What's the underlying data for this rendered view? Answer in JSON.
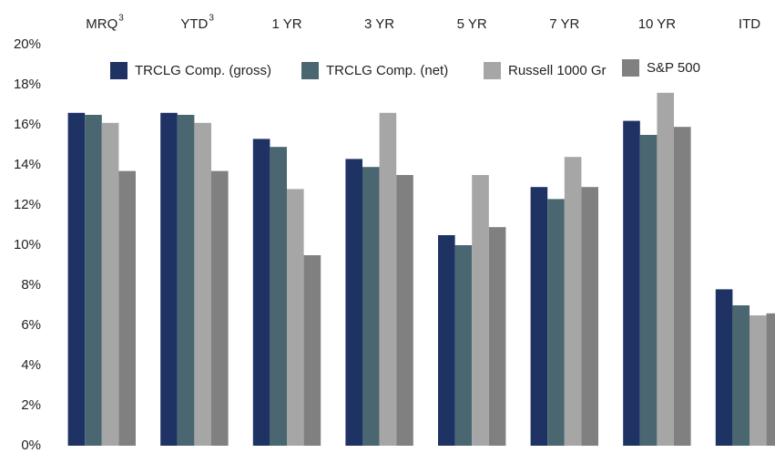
{
  "chart_data": {
    "type": "bar",
    "categories": [
      "MRQ",
      "YTD",
      "1 YR",
      "3 YR",
      "5 YR",
      "7 YR",
      "10 YR",
      "ITD"
    ],
    "category_notes": [
      "3",
      "3",
      null,
      null,
      null,
      null,
      null,
      null
    ],
    "series": [
      {
        "name": "TRCLG Comp. (gross)",
        "color": "#1f3264",
        "values": [
          16.6,
          16.6,
          15.3,
          14.3,
          10.5,
          12.9,
          16.2,
          7.8
        ]
      },
      {
        "name": "TRCLG Comp. (net)",
        "color": "#4a6670",
        "values": [
          16.5,
          16.5,
          14.9,
          13.9,
          10.0,
          12.3,
          15.5,
          7.0
        ]
      },
      {
        "name": "Russell 1000 Gr",
        "color": "#a6a6a6",
        "values": [
          16.1,
          16.1,
          12.8,
          16.6,
          13.5,
          14.4,
          17.6,
          6.5
        ]
      },
      {
        "name": "S&P 500",
        "color": "#808080",
        "values": [
          13.7,
          13.7,
          9.5,
          13.5,
          10.9,
          12.9,
          15.9,
          6.6
        ]
      }
    ],
    "ylim": [
      0,
      20
    ],
    "yticks": [
      {
        "value": 0,
        "label": "0%"
      },
      {
        "value": 2,
        "label": "2%"
      },
      {
        "value": 4,
        "label": "4%"
      },
      {
        "value": 6,
        "label": "6%"
      },
      {
        "value": 8,
        "label": "8%"
      },
      {
        "value": 10,
        "label": "10%"
      },
      {
        "value": 12,
        "label": "12%"
      },
      {
        "value": 14,
        "label": "14%"
      },
      {
        "value": 16,
        "label": "16%"
      },
      {
        "value": 18,
        "label": "18%"
      },
      {
        "value": 20,
        "label": "20%"
      }
    ],
    "grid": false
  }
}
